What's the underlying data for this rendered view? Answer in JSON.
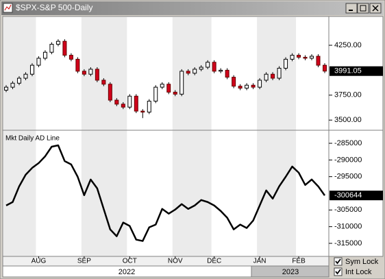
{
  "window": {
    "title": "$SPX-S&P 500-Daily"
  },
  "chart_data": [
    {
      "type": "candlestick",
      "open": [
        3800,
        3830,
        3870,
        3920,
        3960,
        4050,
        4120,
        4180,
        4260,
        4290,
        4150,
        4110,
        3990,
        3960,
        4010,
        3900,
        3860,
        3700,
        3660,
        3630,
        3740,
        3590,
        3580,
        3690,
        3830,
        3860,
        3780,
        3760,
        3990,
        3970,
        4010,
        4030,
        4080,
        3990,
        4000,
        3930,
        3840,
        3820,
        3850,
        3830,
        3900,
        3960,
        3920,
        4020,
        4110,
        4150,
        4130,
        4120,
        4140,
        4050
      ],
      "high": [
        3850,
        3890,
        3940,
        3980,
        4070,
        4140,
        4200,
        4280,
        4310,
        4310,
        4170,
        4130,
        4010,
        4030,
        4030,
        3920,
        3880,
        3720,
        3680,
        3760,
        3760,
        3610,
        3710,
        3850,
        3880,
        3880,
        3800,
        4010,
        4010,
        4030,
        4050,
        4100,
        4100,
        4020,
        4020,
        3950,
        3860,
        3870,
        3870,
        3920,
        3980,
        3980,
        4040,
        4130,
        4170,
        4170,
        4150,
        4160,
        4160,
        4070
      ],
      "low": [
        3780,
        3810,
        3850,
        3900,
        3940,
        4030,
        4100,
        4160,
        4240,
        4130,
        4090,
        3970,
        3940,
        3940,
        3880,
        3840,
        3680,
        3640,
        3610,
        3610,
        3570,
        3520,
        3560,
        3670,
        3810,
        3760,
        3740,
        3740,
        3950,
        3950,
        3990,
        4010,
        3970,
        3970,
        3910,
        3820,
        3800,
        3800,
        3810,
        3810,
        3880,
        3900,
        3900,
        4000,
        4090,
        4110,
        4100,
        4100,
        4030,
        3971
      ],
      "close": [
        3830,
        3870,
        3920,
        3960,
        4050,
        4120,
        4180,
        4260,
        4290,
        4150,
        4110,
        3990,
        3960,
        4010,
        3900,
        3860,
        3700,
        3660,
        3630,
        3740,
        3590,
        3580,
        3690,
        3830,
        3860,
        3780,
        3760,
        3990,
        3970,
        4010,
        4030,
        4080,
        3990,
        4000,
        3930,
        3840,
        3820,
        3850,
        3830,
        3900,
        3960,
        3920,
        4020,
        4110,
        4150,
        4130,
        4120,
        4140,
        4050,
        3991.05
      ],
      "up_color": "#ffffff",
      "down_color": "#d0021b",
      "ylim": [
        3412,
        4525
      ],
      "yticks": [
        {
          "value": 3500,
          "label": "3500.00"
        },
        {
          "value": 3750,
          "label": "3750.00"
        },
        {
          "value": 4250,
          "label": "4250.00"
        }
      ]
    },
    {
      "type": "line",
      "title": "Mkt Daily AD Line",
      "categories": [
        null,
        null,
        null,
        null,
        null,
        "AUG",
        null,
        null,
        null,
        null,
        null,
        null,
        "SEP",
        null,
        null,
        null,
        null,
        null,
        null,
        "OCT",
        null,
        null,
        null,
        null,
        null,
        null,
        "NOV",
        null,
        null,
        null,
        null,
        null,
        "DEC",
        null,
        null,
        null,
        null,
        null,
        null,
        "JAN",
        null,
        null,
        null,
        null,
        null,
        "FEB",
        null,
        null,
        null,
        null
      ],
      "values": [
        -303650,
        -302620,
        -297910,
        -294430,
        -292380,
        -290940,
        -288890,
        -286020,
        -285610,
        -290330,
        -291350,
        -295040,
        -300570,
        -295860,
        -298520,
        -304670,
        -310820,
        -312870,
        -308770,
        -309790,
        -313890,
        -314300,
        -310200,
        -309380,
        -304670,
        -306100,
        -304880,
        -303240,
        -304670,
        -303650,
        -302010,
        -302620,
        -303650,
        -305290,
        -307330,
        -310820,
        -309380,
        -310400,
        -308150,
        -303650,
        -299140,
        -301600,
        -297910,
        -295040,
        -291970,
        -293810,
        -297500,
        -295860,
        -297910,
        -300644
      ],
      "color": "#000000",
      "ylim": [
        -318500,
        -281500
      ],
      "yticks": [
        -315000,
        -310000,
        -305000,
        -295000,
        -290000,
        -285000
      ]
    }
  ],
  "years": [
    "2022",
    "2023"
  ],
  "options": [
    {
      "label": "Sym Lock",
      "checked": true
    },
    {
      "label": "Int Lock",
      "checked": true
    }
  ]
}
